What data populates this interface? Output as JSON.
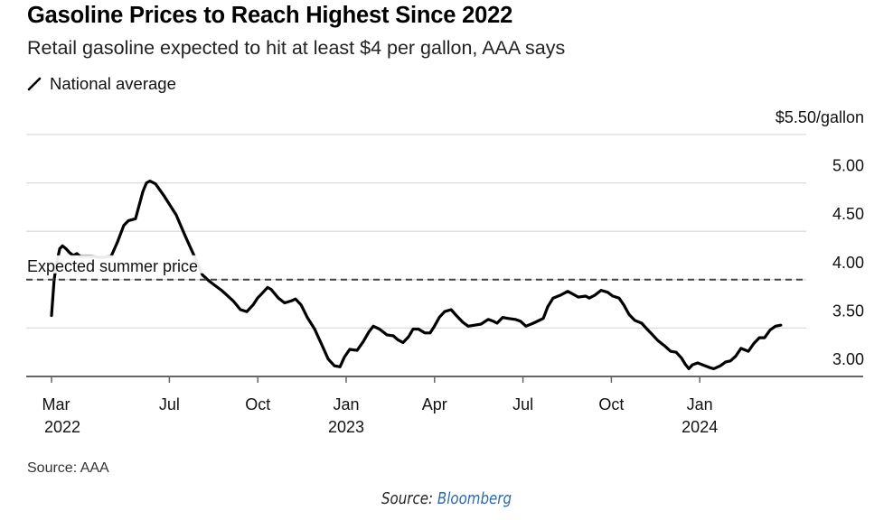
{
  "header": {
    "title": "Gasoline Prices to Reach Highest Since 2022",
    "subtitle": "Retail gasoline expected to hit at least $4 per gallon, AAA says",
    "legend_label": "National average"
  },
  "source": "Source: AAA",
  "footer": {
    "prefix": "Source: ",
    "link_text": "Bloomberg",
    "link_color": "#2a6ab1"
  },
  "chart_data": {
    "type": "line",
    "title": "Gasoline Prices to Reach Highest Since 2022",
    "subtitle": "Retail gasoline expected to hit at least $4 per gallon, AAA says",
    "xlabel": "",
    "ylabel": "$/gallon",
    "x_unit": "months since March 2022",
    "xlim": [
      0,
      27.4
    ],
    "ylim": [
      3.0,
      5.5
    ],
    "grid": true,
    "legend": "top-left",
    "y_ticks": [
      {
        "value": 5.5,
        "label": "$5.50/gallon"
      },
      {
        "value": 5.0,
        "label": "5.00"
      },
      {
        "value": 4.5,
        "label": "4.50"
      },
      {
        "value": 4.0,
        "label": "4.00"
      },
      {
        "value": 3.5,
        "label": "3.50"
      },
      {
        "value": 3.0,
        "label": "3.00"
      }
    ],
    "x_ticks": [
      {
        "value": 0,
        "label": "Mar",
        "year": "2022"
      },
      {
        "value": 4,
        "label": "Jul",
        "year": ""
      },
      {
        "value": 7,
        "label": "Oct",
        "year": ""
      },
      {
        "value": 10,
        "label": "Jan",
        "year": "2023"
      },
      {
        "value": 13,
        "label": "Apr",
        "year": ""
      },
      {
        "value": 16,
        "label": "Jul",
        "year": ""
      },
      {
        "value": 19,
        "label": "Oct",
        "year": ""
      },
      {
        "value": 22,
        "label": "Jan",
        "year": "2024"
      }
    ],
    "reference_line": {
      "value": 4.0,
      "label": "Expected summer price",
      "style": "dashed"
    },
    "series": [
      {
        "name": "National average",
        "color": "#000000",
        "points": [
          [
            0.0,
            3.63
          ],
          [
            0.09,
            4.0
          ],
          [
            0.18,
            4.18
          ],
          [
            0.28,
            4.32
          ],
          [
            0.37,
            4.35
          ],
          [
            0.49,
            4.32
          ],
          [
            0.61,
            4.28
          ],
          [
            0.74,
            4.25
          ],
          [
            0.86,
            4.27
          ],
          [
            0.98,
            4.24
          ],
          [
            1.32,
            4.24
          ],
          [
            1.69,
            4.23
          ],
          [
            2.02,
            4.24
          ],
          [
            2.24,
            4.39
          ],
          [
            2.45,
            4.56
          ],
          [
            2.61,
            4.61
          ],
          [
            2.85,
            4.63
          ],
          [
            3.1,
            4.91
          ],
          [
            3.22,
            5.0
          ],
          [
            3.34,
            5.02
          ],
          [
            3.53,
            4.99
          ],
          [
            3.83,
            4.86
          ],
          [
            4.23,
            4.67
          ],
          [
            4.54,
            4.45
          ],
          [
            4.88,
            4.22
          ],
          [
            5.12,
            4.05
          ],
          [
            5.37,
            3.98
          ],
          [
            5.77,
            3.89
          ],
          [
            6.17,
            3.78
          ],
          [
            6.41,
            3.69
          ],
          [
            6.63,
            3.67
          ],
          [
            6.84,
            3.74
          ],
          [
            6.99,
            3.81
          ],
          [
            7.15,
            3.86
          ],
          [
            7.33,
            3.92
          ],
          [
            7.45,
            3.9
          ],
          [
            7.7,
            3.81
          ],
          [
            7.91,
            3.76
          ],
          [
            8.13,
            3.78
          ],
          [
            8.28,
            3.8
          ],
          [
            8.47,
            3.74
          ],
          [
            8.68,
            3.61
          ],
          [
            8.93,
            3.49
          ],
          [
            9.17,
            3.33
          ],
          [
            9.39,
            3.18
          ],
          [
            9.6,
            3.11
          ],
          [
            9.79,
            3.1
          ],
          [
            9.94,
            3.2
          ],
          [
            10.12,
            3.28
          ],
          [
            10.37,
            3.27
          ],
          [
            10.58,
            3.36
          ],
          [
            10.77,
            3.46
          ],
          [
            10.92,
            3.52
          ],
          [
            11.13,
            3.49
          ],
          [
            11.38,
            3.43
          ],
          [
            11.6,
            3.42
          ],
          [
            11.75,
            3.38
          ],
          [
            11.93,
            3.35
          ],
          [
            12.12,
            3.41
          ],
          [
            12.27,
            3.49
          ],
          [
            12.45,
            3.49
          ],
          [
            12.67,
            3.45
          ],
          [
            12.85,
            3.45
          ],
          [
            12.98,
            3.51
          ],
          [
            13.16,
            3.61
          ],
          [
            13.34,
            3.67
          ],
          [
            13.56,
            3.69
          ],
          [
            13.74,
            3.63
          ],
          [
            13.96,
            3.56
          ],
          [
            14.14,
            3.52
          ],
          [
            14.36,
            3.53
          ],
          [
            14.57,
            3.54
          ],
          [
            14.82,
            3.59
          ],
          [
            15.0,
            3.57
          ],
          [
            15.12,
            3.55
          ],
          [
            15.31,
            3.61
          ],
          [
            15.49,
            3.6
          ],
          [
            15.74,
            3.59
          ],
          [
            15.92,
            3.57
          ],
          [
            16.1,
            3.52
          ],
          [
            16.35,
            3.55
          ],
          [
            16.69,
            3.6
          ],
          [
            16.84,
            3.72
          ],
          [
            17.02,
            3.81
          ],
          [
            17.27,
            3.84
          ],
          [
            17.52,
            3.88
          ],
          [
            17.7,
            3.85
          ],
          [
            17.88,
            3.82
          ],
          [
            18.13,
            3.83
          ],
          [
            18.25,
            3.81
          ],
          [
            18.44,
            3.84
          ],
          [
            18.65,
            3.89
          ],
          [
            18.87,
            3.87
          ],
          [
            19.05,
            3.83
          ],
          [
            19.26,
            3.81
          ],
          [
            19.42,
            3.74
          ],
          [
            19.6,
            3.64
          ],
          [
            19.79,
            3.58
          ],
          [
            20.03,
            3.55
          ],
          [
            20.21,
            3.49
          ],
          [
            20.4,
            3.43
          ],
          [
            20.58,
            3.37
          ],
          [
            20.83,
            3.31
          ],
          [
            21.01,
            3.26
          ],
          [
            21.2,
            3.25
          ],
          [
            21.38,
            3.19
          ],
          [
            21.5,
            3.13
          ],
          [
            21.63,
            3.08
          ],
          [
            21.75,
            3.12
          ],
          [
            21.93,
            3.14
          ],
          [
            22.18,
            3.11
          ],
          [
            22.36,
            3.09
          ],
          [
            22.48,
            3.08
          ],
          [
            22.7,
            3.11
          ],
          [
            22.88,
            3.15
          ],
          [
            23.04,
            3.16
          ],
          [
            23.22,
            3.21
          ],
          [
            23.4,
            3.29
          ],
          [
            23.65,
            3.26
          ],
          [
            23.83,
            3.34
          ],
          [
            24.02,
            3.4
          ],
          [
            24.2,
            3.4
          ],
          [
            24.39,
            3.48
          ],
          [
            24.57,
            3.52
          ],
          [
            24.75,
            3.53
          ]
        ]
      }
    ]
  }
}
